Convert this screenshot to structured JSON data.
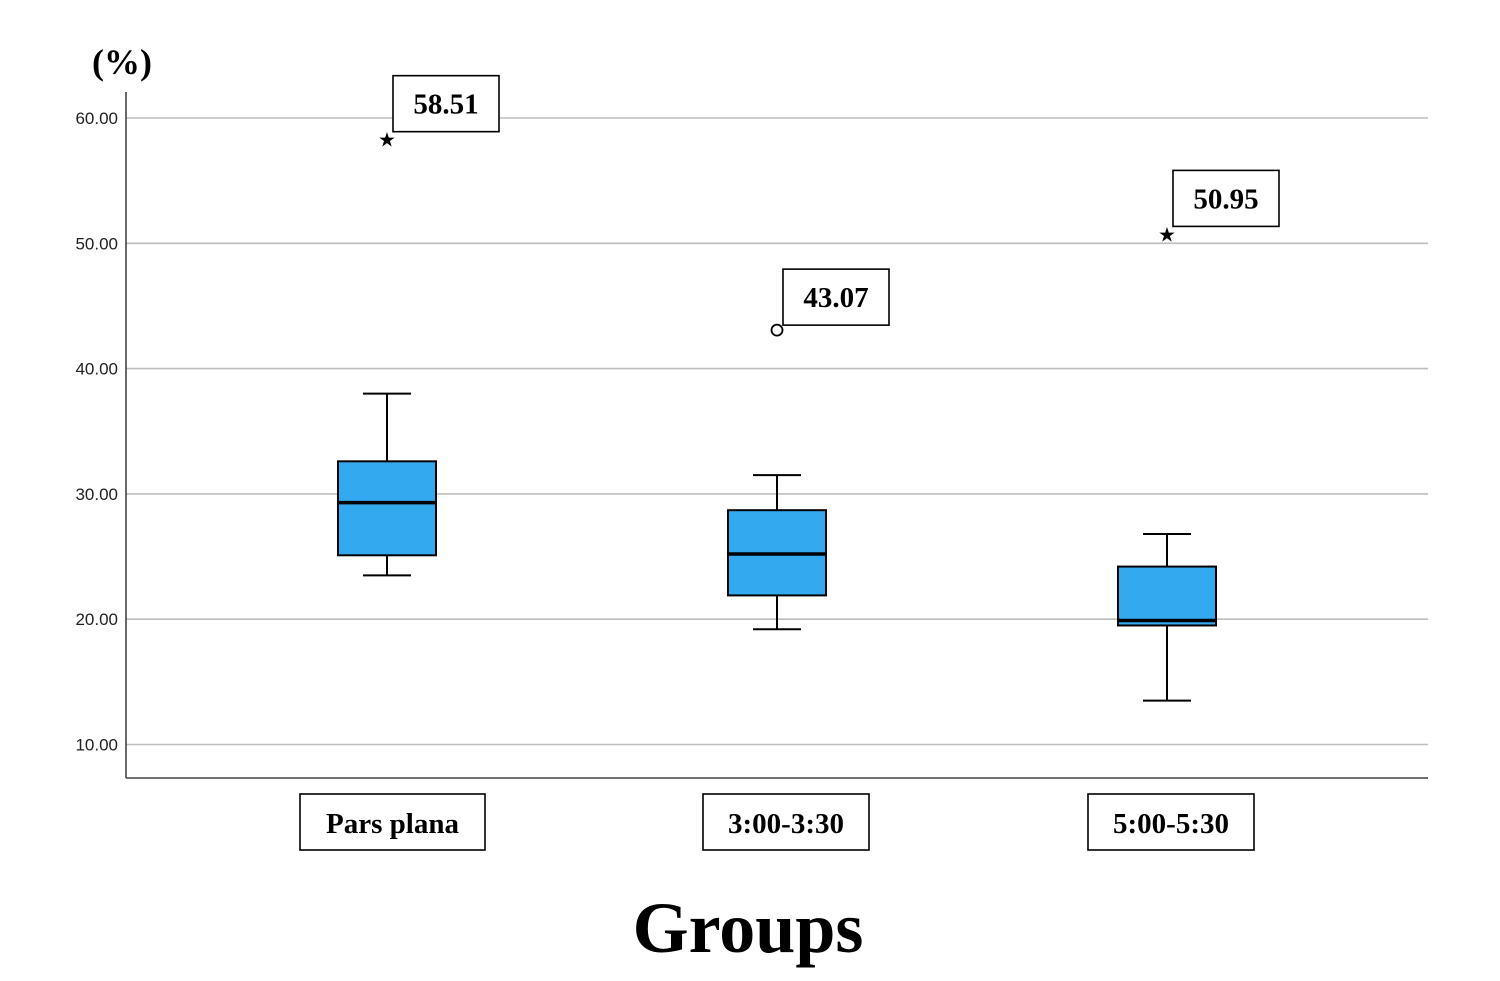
{
  "chart_data": {
    "type": "box",
    "ylabel": "(%)",
    "xlabel": "Groups",
    "ylim": [
      7.2,
      62.5
    ],
    "yticks": [
      "10.00",
      "20.00",
      "30.00",
      "40.00",
      "50.00",
      "60.00"
    ],
    "ytick_values": [
      10,
      20,
      30,
      40,
      50,
      60
    ],
    "grid": true,
    "box_color": "#33aaf0",
    "categories": [
      "Pars plana",
      "3:00-3:30",
      "5:00-5:30"
    ],
    "boxes": [
      {
        "min": 23.5,
        "q1": 25.1,
        "median": 29.3,
        "q3": 32.6,
        "max": 38.0
      },
      {
        "min": 19.2,
        "q1": 21.9,
        "median": 25.2,
        "q3": 28.7,
        "max": 31.5
      },
      {
        "min": 13.5,
        "q1": 19.5,
        "median": 19.9,
        "q3": 24.2,
        "max": 26.8
      }
    ],
    "outliers": [
      {
        "category": "Pars plana",
        "value": 58.51,
        "marker": "star",
        "label": "58.51"
      },
      {
        "category": "3:00-3:30",
        "value": 43.07,
        "marker": "circle",
        "label": "43.07"
      },
      {
        "category": "5:00-5:30",
        "value": 50.95,
        "marker": "star",
        "label": "50.95"
      }
    ]
  }
}
